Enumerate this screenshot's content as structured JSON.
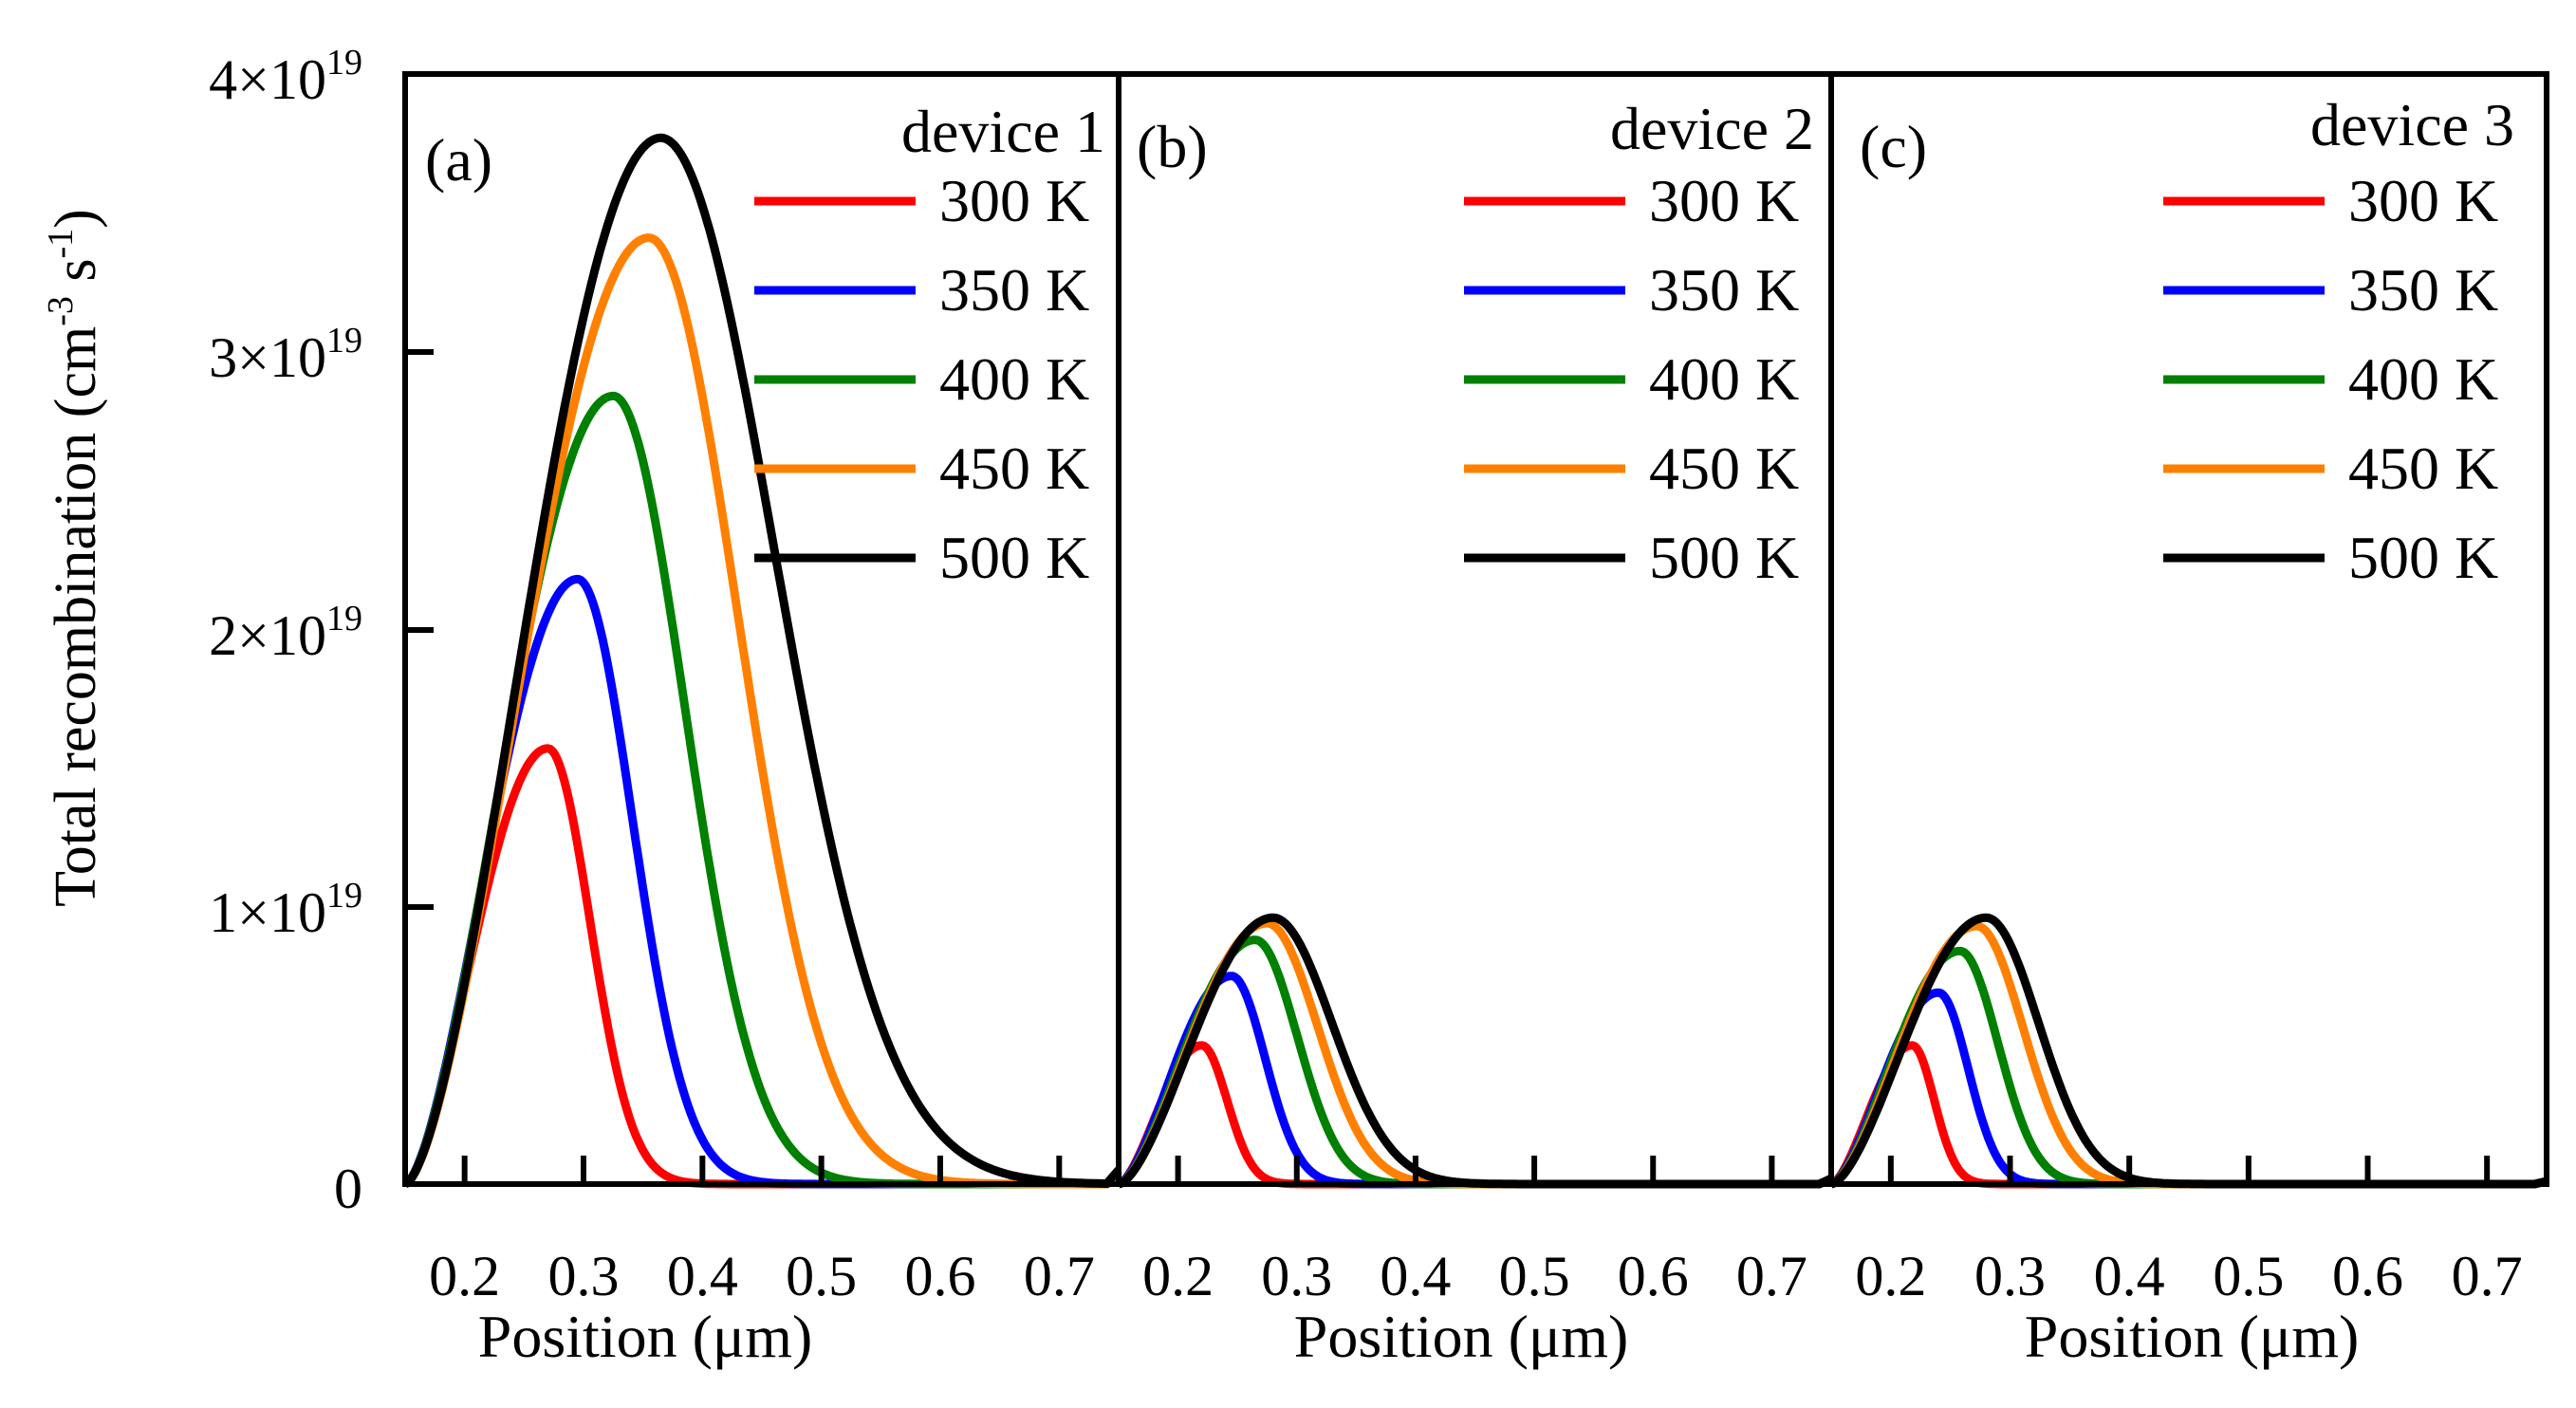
{
  "chart_data": {
    "type": "line",
    "ylabel": {
      "main": "Total recombination (cm",
      "sup1": "-3",
      "mid": " s",
      "sup2": "-1",
      "end": ")"
    },
    "ylim": [
      0,
      4e+19
    ],
    "yticks": [
      {
        "value": 0,
        "label": "0",
        "exp": ""
      },
      {
        "value": 1e+19,
        "label": "1×10",
        "exp": "19"
      },
      {
        "value": 2e+19,
        "label": "2×10",
        "exp": "19"
      },
      {
        "value": 3e+19,
        "label": "3×10",
        "exp": "19"
      },
      {
        "value": 4e+19,
        "label": "4×10",
        "exp": "19"
      }
    ],
    "legend_entries": [
      {
        "label": "300 K",
        "color": "#ff0000"
      },
      {
        "label": "350 K",
        "color": "#0000ff"
      },
      {
        "label": "400 K",
        "color": "#008000"
      },
      {
        "label": "450 K",
        "color": "#ff8000"
      },
      {
        "label": "500 K",
        "color": "#000000"
      }
    ],
    "panels": [
      {
        "label": "(a)",
        "title": "device 1",
        "xlabel": "Position (μm)",
        "xlim": [
          0.15,
          0.75
        ],
        "xticks": [
          "0.2",
          "0.3",
          "0.4",
          "0.5",
          "0.6",
          "0.7"
        ],
        "x0": 0.15,
        "tail_end": 0.74,
        "edge_val": 5e+17,
        "series": [
          {
            "name": "300 K",
            "peak_x": 0.27,
            "peak": 1.57e+19,
            "fall": 0.05
          },
          {
            "name": "350 K",
            "peak_x": 0.295,
            "peak": 2.18e+19,
            "fall": 0.065
          },
          {
            "name": "400 K",
            "peak_x": 0.325,
            "peak": 2.84e+19,
            "fall": 0.085
          },
          {
            "name": "450 K",
            "peak_x": 0.355,
            "peak": 3.41e+19,
            "fall": 0.105
          },
          {
            "name": "500 K",
            "peak_x": 0.365,
            "peak": 3.77e+19,
            "fall": 0.135
          }
        ]
      },
      {
        "label": "(b)",
        "title": "device 2",
        "xlabel": "Position (μm)",
        "xlim": [
          0.15,
          0.75
        ],
        "xticks": [
          "0.2",
          "0.3",
          "0.4",
          "0.5",
          "0.6",
          "0.7"
        ],
        "x0": 0.15,
        "tail_end": 0.74,
        "edge_val": 2e+17,
        "series": [
          {
            "name": "300 K",
            "peak_x": 0.22,
            "peak": 5e+18,
            "fall": 0.03
          },
          {
            "name": "350 K",
            "peak_x": 0.245,
            "peak": 7.5e+18,
            "fall": 0.04
          },
          {
            "name": "400 K",
            "peak_x": 0.265,
            "peak": 8.8e+18,
            "fall": 0.05
          },
          {
            "name": "450 K",
            "peak_x": 0.275,
            "peak": 9.4e+18,
            "fall": 0.06
          },
          {
            "name": "500 K",
            "peak_x": 0.28,
            "peak": 9.6e+18,
            "fall": 0.07
          }
        ]
      },
      {
        "label": "(c)",
        "title": "device 3",
        "xlabel": "Position (μm)",
        "xlim": [
          0.15,
          0.75
        ],
        "xticks": [
          "0.2",
          "0.3",
          "0.4",
          "0.5",
          "0.6",
          "0.7"
        ],
        "x0": 0.15,
        "tail_end": 0.74,
        "edge_val": 1e+17,
        "series": [
          {
            "name": "300 K",
            "peak_x": 0.218,
            "peak": 5e+18,
            "fall": 0.026
          },
          {
            "name": "350 K",
            "peak_x": 0.24,
            "peak": 6.9e+18,
            "fall": 0.035
          },
          {
            "name": "400 K",
            "peak_x": 0.258,
            "peak": 8.4e+18,
            "fall": 0.045
          },
          {
            "name": "450 K",
            "peak_x": 0.272,
            "peak": 9.3e+18,
            "fall": 0.055
          },
          {
            "name": "500 K",
            "peak_x": 0.28,
            "peak": 9.6e+18,
            "fall": 0.062
          }
        ]
      }
    ]
  }
}
